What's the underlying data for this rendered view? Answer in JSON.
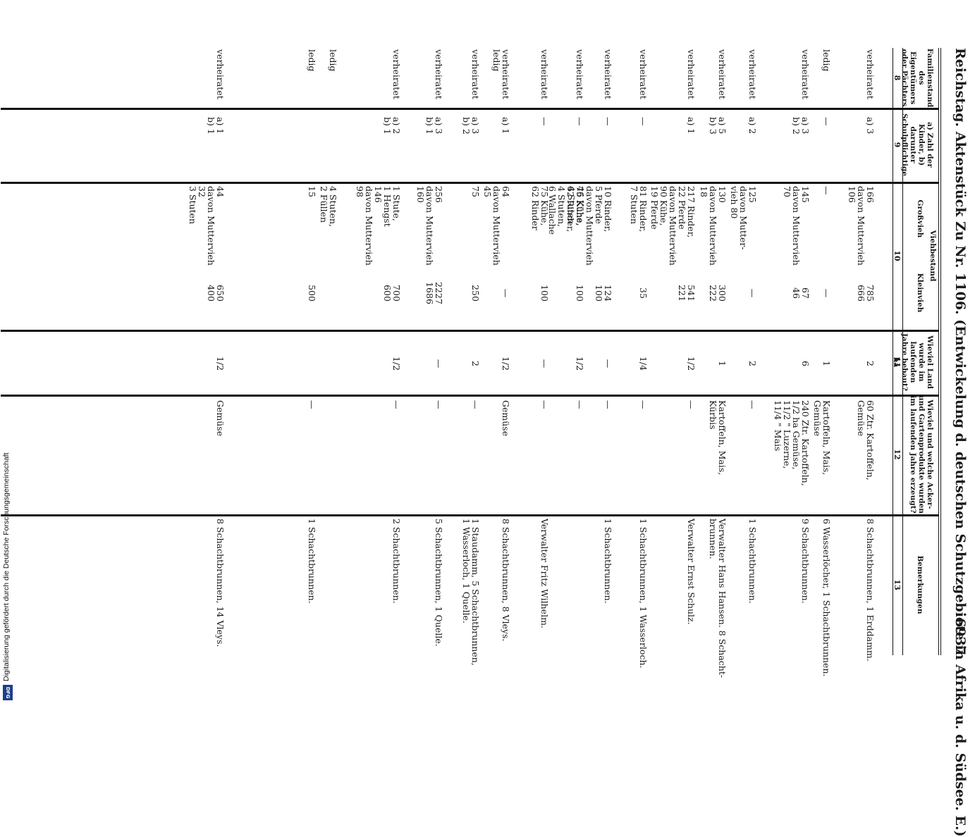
{
  "header": {
    "left": "Reichstag. Aktenstück Zu Nr. 1106. (Entwickelung d. deutschen Schutzgebiete in Afrika u. d. Südsee. E.)",
    "page_number": "6937"
  },
  "columns": [
    {
      "label": "Familienstand des Eigentümers oder Pächters",
      "num": "8"
    },
    {
      "label": "a) Zahl der Kinder, b) darunter Schulpflichtige",
      "num": "9"
    },
    {
      "label": "Großvieh",
      "num": ""
    },
    {
      "label": "Kleinvieh",
      "num": ""
    },
    {
      "label": "Wieviel Land wurde im laufenden Jahre bebaut? ha",
      "num": "11"
    },
    {
      "label": "Wieviel und welche Acker- und Gartenprodukte wurden im laufenden Jahre erzeugt?",
      "num": "12"
    },
    {
      "label": "Bemerkungen",
      "num": "13"
    }
  ],
  "group_header": {
    "label": "Viehbestand",
    "num": "10"
  },
  "rows": [
    {
      "fam": "verheiratet",
      "kids": "a) 3",
      "gross": "166\ndavon Muttervieh\n106",
      "klein": "785\n666",
      "land": "2",
      "prod": "60 Ztr. Kartoffeln,\nGemüse",
      "bem": "8 Schachtbrunnen, 1 Erddamm."
    },
    {
      "fam": "ledig",
      "kids": "—",
      "gross": "—",
      "klein": "—",
      "land": "1",
      "prod": "Kartoffeln, Mais,\nGemüse",
      "bem": "6 Wasserlöcher, 1 Schachtbrunnen."
    },
    {
      "fam": "verheiratet",
      "kids": "a) 3\nb) 2",
      "gross": "145\ndavon Muttervieh\n70",
      "klein": "67\n46",
      "land": "6",
      "prod": "240 Ztr. Kartoffeln,\n1/2 ha Gemüse,\n11/2 \" Luzerne,\n11/4 \" Mais",
      "bem": "9 Schachtbrunnen."
    },
    {
      "fam": "verheiratet",
      "kids": "a) 2",
      "gross": "125\ndavon Mutter-\nvieh 80",
      "klein": "—",
      "land": "2",
      "prod": "—",
      "bem": "1 Schachtbrunnen."
    },
    {
      "fam": "verheiratet",
      "kids": "a) 5\nb) 3",
      "gross": "130\ndavon Muttervieh\n18",
      "klein": "300\n222",
      "land": "1",
      "prod": "Kartoffeln, Mais,\nKürbis",
      "bem": "Verwalter Hans Hansen. 8 Schacht-\nbrunnen."
    },
    {
      "fam": "verheiratet",
      "kids": "a) 1",
      "gross": "217 Rinder,\n22 Pferde\ndavon Muttervieh\n90 Kühe,\n19 Pferde",
      "klein": "541\n221",
      "land": "1/2",
      "prod": "—",
      "bem": "Verwalter Ernst Schulz."
    },
    {
      "fam": "verheiratet",
      "kids": "—",
      "gross": "81 Rinder,\n7 Stuten",
      "klein": "35",
      "land": "1/4",
      "prod": "—",
      "bem": "1 Schachtbrunnen, 1 Wasserloch."
    },
    {
      "fam": "verheiratet",
      "kids": "—",
      "gross": "10 Rinder,\n5 Pferde\ndavon Muttervieh\n46 Kühe,\n4 Stuten",
      "klein": "124\n100",
      "land": "—",
      "prod": "—",
      "bem": "1 Schachtbrunnen."
    },
    {
      "fam": "verheiratet",
      "kids": "—",
      "gross": "75 Kühe,\n62 Rinder,\n4 Stuten,\n6 Wallache",
      "klein": "100",
      "land": "1/2",
      "prod": "—",
      "bem": ""
    },
    {
      "fam": "verheiratet",
      "kids": "—",
      "gross": "75 Kühe,\n62 Rinder",
      "klein": "100",
      "land": "—",
      "prod": "—",
      "bem": "Verwalter Fritz Wilhelm."
    },
    {
      "fam": "verheiratet\nledig",
      "kids": "a) 1",
      "gross": "64\ndavon Muttervieh\n45",
      "klein": "—",
      "land": "1/2",
      "prod": "Gemüse",
      "bem": "8 Schachtbrunnen, 8 Vleys."
    },
    {
      "fam": "verheiratet",
      "kids": "a) 3\nb) 2",
      "gross": "75",
      "klein": "250",
      "land": "2",
      "prod": "—",
      "bem": "1 Staudamm, 5 Schachtbrunnen,\n1 Wasserloch, 1 Quelle."
    },
    {
      "fam": "verheiratet",
      "kids": "a) 3\nb) 1",
      "gross": "256\ndavon Muttervieh\n160",
      "klein": "2227\n1686",
      "land": "—",
      "prod": "—",
      "bem": "5 Schachtbrunnen, 1 Quelle."
    },
    {
      "fam": "verheiratet",
      "kids": "a) 2\nb) 1",
      "gross": "1 Stute,\n1 Hengst\n146\ndavon Muttervieh\n98",
      "klein": "700\n600",
      "land": "1/2",
      "prod": "—",
      "bem": "2 Schachtbrunnen."
    },
    {
      "fam": "ledig",
      "kids": "",
      "gross": "4 Stuten,\n2 Füllen",
      "klein": "",
      "land": "",
      "prod": "",
      "bem": ""
    },
    {
      "fam": "ledig",
      "kids": "",
      "gross": "15",
      "klein": "500",
      "land": "",
      "prod": "—",
      "bem": "1 Schachtbrunnen."
    },
    {
      "fam": "verheiratet",
      "kids": "a) 1\nb) 1",
      "gross": "44\ndavon Muttervieh\n32\n3 Stuten",
      "klein": "650\n400",
      "land": "1/2",
      "prod": "Gemüse",
      "bem": "8 Schachtbrunnen, 14 Vleys."
    }
  ],
  "side_note": "Digitalisierung gefördert durch die Deutsche Forschungsgemeinschaft",
  "logo": "DFG"
}
